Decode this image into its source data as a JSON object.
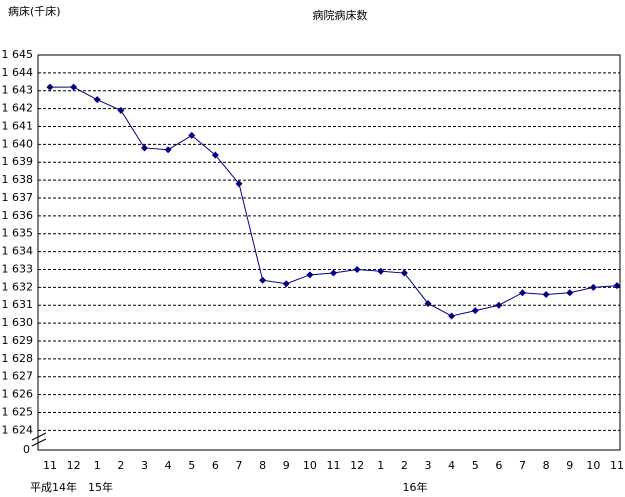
{
  "chart_data": {
    "type": "line",
    "title": "病院病床数",
    "y_label": "病床(千床)",
    "categories": [
      "11",
      "12",
      "1",
      "2",
      "3",
      "4",
      "5",
      "6",
      "7",
      "8",
      "9",
      "10",
      "11",
      "12",
      "1",
      "2",
      "3",
      "4",
      "5",
      "6",
      "7",
      "8",
      "9",
      "10",
      "11"
    ],
    "year_labels": [
      "平成14年",
      "15年",
      "16年"
    ],
    "series": [
      {
        "name": "病院病床数",
        "color": "#000080",
        "values": [
          1643.2,
          1643.2,
          1642.5,
          1641.9,
          1639.8,
          1639.7,
          1640.5,
          1639.4,
          1637.8,
          1632.4,
          1632.2,
          1632.7,
          1632.8,
          1633.0,
          1632.9,
          1632.8,
          1631.1,
          1630.4,
          1630.7,
          1631.0,
          1631.7,
          1631.6,
          1631.7,
          1632.0,
          1632.1
        ]
      }
    ],
    "ylim": [
      1622.9,
      1645
    ],
    "yticks": [
      {
        "value": 1624,
        "label": "1 624"
      },
      {
        "value": 1625,
        "label": "1 625"
      },
      {
        "value": 1626,
        "label": "1 626"
      },
      {
        "value": 1627,
        "label": "1 627"
      },
      {
        "value": 1628,
        "label": "1 628"
      },
      {
        "value": 1629,
        "label": "1 629"
      },
      {
        "value": 1630,
        "label": "1 630"
      },
      {
        "value": 1631,
        "label": "1 631"
      },
      {
        "value": 1632,
        "label": "1 632"
      },
      {
        "value": 1633,
        "label": "1 633"
      },
      {
        "value": 1634,
        "label": "1 634"
      },
      {
        "value": 1635,
        "label": "1 635"
      },
      {
        "value": 1636,
        "label": "1 636"
      },
      {
        "value": 1637,
        "label": "1 637"
      },
      {
        "value": 1638,
        "label": "1 638"
      },
      {
        "value": 1639,
        "label": "1 639"
      },
      {
        "value": 1640,
        "label": "1 640"
      },
      {
        "value": 1641,
        "label": "1 641"
      },
      {
        "value": 1642,
        "label": "1 642"
      },
      {
        "value": 1643,
        "label": "1 643"
      },
      {
        "value": 1644,
        "label": "1 644"
      },
      {
        "value": 1645,
        "label": "1 645"
      }
    ],
    "y_break_label": "0",
    "grid": true
  }
}
